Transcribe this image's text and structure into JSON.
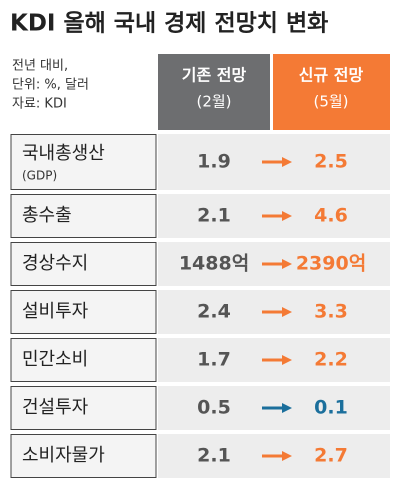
{
  "title": "KDI 올해 국내 경제 전망치 변화",
  "notes": [
    "전년 대비,",
    "단위: %, 달러",
    "자료: KDI"
  ],
  "columns": [
    {
      "label": "기존 전망",
      "sublabel": "(2월)"
    },
    {
      "label": "신규 전망",
      "sublabel": "(5월)"
    }
  ],
  "rows": [
    {
      "label": "국내총생산",
      "sublabel": "(GDP)",
      "before": 1.9,
      "after": 2.5
    },
    {
      "label": "총수출",
      "before": 2.1,
      "after": 4.6
    },
    {
      "label": "경상수지",
      "before": "1488억",
      "after": "2390억"
    },
    {
      "label": "설비투자",
      "before": 2.4,
      "after": 3.3
    },
    {
      "label": "민간소비",
      "before": 1.7,
      "after": 2.2
    },
    {
      "label": "건설투자",
      "before": 0.5,
      "after": 0.1
    },
    {
      "label": "소비자물가",
      "before": 2.1,
      "after": 2.7
    }
  ]
}
